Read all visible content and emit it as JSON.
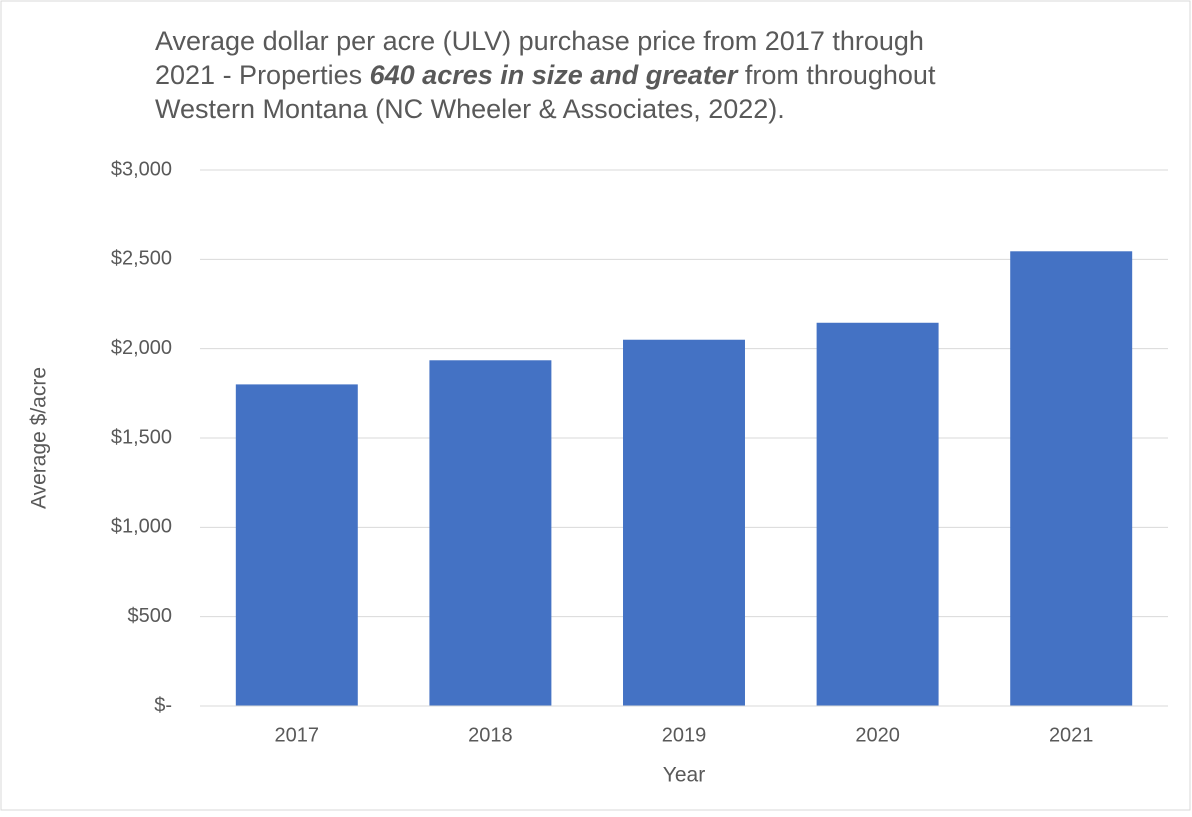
{
  "chart_data": {
    "type": "bar",
    "title_lines": [
      [
        {
          "text": "Average dollar per acre (ULV) purchase price from 2017 through"
        }
      ],
      [
        {
          "text": "2021 - Properties "
        },
        {
          "text": "640 acres in size and greater",
          "emphasis": true
        },
        {
          "text": " from throughout"
        }
      ],
      [
        {
          "text": "Western Montana (NC Wheeler & Associates, 2022)."
        }
      ]
    ],
    "x_label": "Year",
    "y_label": "Average $/acre",
    "categories": [
      "2017",
      "2018",
      "2019",
      "2020",
      "2021"
    ],
    "values": [
      1800,
      1935,
      2050,
      2145,
      2545
    ],
    "color": "#4472c4",
    "ylim": [
      0,
      3000
    ],
    "yticks": [
      {
        "value": 0,
        "label": "$-"
      },
      {
        "value": 500,
        "label": "$500"
      },
      {
        "value": 1000,
        "label": "$1,000"
      },
      {
        "value": 1500,
        "label": "$1,500"
      },
      {
        "value": 2000,
        "label": "$2,000"
      },
      {
        "value": 2500,
        "label": "$2,500"
      },
      {
        "value": 3000,
        "label": "$3,000"
      }
    ],
    "grid": true
  }
}
